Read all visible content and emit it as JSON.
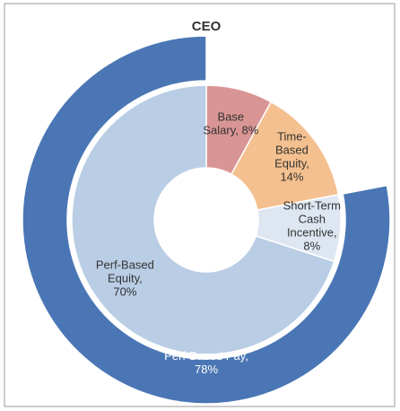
{
  "chart_data": {
    "type": "nested-donut",
    "title": "CEO",
    "inner": {
      "values": [
        8,
        14,
        8,
        70
      ],
      "colors": [
        "#d99594",
        "#f5c08f",
        "#dde6f1",
        "#b9cde5"
      ],
      "value_labels": [
        [
          "Base",
          "Salary, 8%"
        ],
        [
          "Time-",
          "Based",
          "Equity,",
          "14%"
        ],
        [
          "Short-Term",
          "Cash",
          "Incentive,",
          "8%"
        ],
        [
          "Perf-Based",
          "Equity,",
          "70%"
        ]
      ]
    },
    "outer": {
      "values": [
        78
      ],
      "colors": [
        "#4a76b5"
      ],
      "value_labels": [
        [
          "Perf-Based Pay,",
          "78%"
        ]
      ]
    }
  }
}
